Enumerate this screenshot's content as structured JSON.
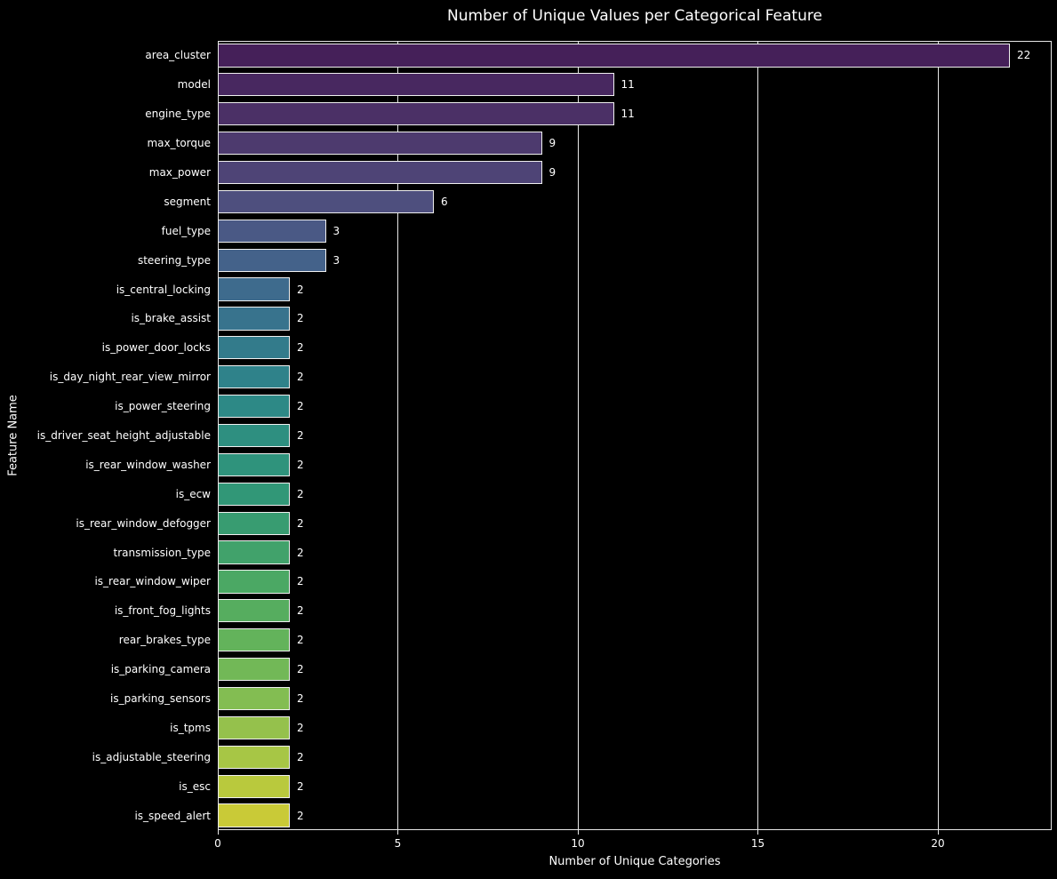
{
  "chart_data": {
    "type": "bar",
    "orientation": "horizontal",
    "title": "Number of Unique Values per Categorical Feature",
    "xlabel": "Number of Unique Categories",
    "ylabel": "Feature Name",
    "categories": [
      "area_cluster",
      "model",
      "engine_type",
      "max_torque",
      "max_power",
      "segment",
      "fuel_type",
      "steering_type",
      "is_central_locking",
      "is_brake_assist",
      "is_power_door_locks",
      "is_day_night_rear_view_mirror",
      "is_power_steering",
      "is_driver_seat_height_adjustable",
      "is_rear_window_washer",
      "is_ecw",
      "is_rear_window_defogger",
      "transmission_type",
      "is_rear_window_wiper",
      "is_front_fog_lights",
      "rear_brakes_type",
      "is_parking_camera",
      "is_parking_sensors",
      "is_tpms",
      "is_adjustable_steering",
      "is_esc",
      "is_speed_alert"
    ],
    "values": [
      22,
      11,
      11,
      9,
      9,
      6,
      3,
      3,
      2,
      2,
      2,
      2,
      2,
      2,
      2,
      2,
      2,
      2,
      2,
      2,
      2,
      2,
      2,
      2,
      2,
      2,
      2
    ],
    "bar_colors": [
      "#452059",
      "#482860",
      "#4b3066",
      "#4d3a6e",
      "#4e4476",
      "#4e4f7e",
      "#4a5985",
      "#44628a",
      "#3e6b8d",
      "#38738d",
      "#337b8b",
      "#2f828a",
      "#2d8986",
      "#2e8f80",
      "#2f937c",
      "#319777",
      "#389c71",
      "#41a26b",
      "#4ba864",
      "#56ad5f",
      "#63b35b",
      "#72b857",
      "#83bd52",
      "#95c14c",
      "#a7c645",
      "#b9c93d",
      "#c9ca37"
    ],
    "xticks": [
      0,
      5,
      10,
      15,
      20
    ],
    "xlim": [
      0,
      23.16
    ],
    "grid": "vertical-only",
    "legend": "none",
    "background_color": "#000000",
    "text_color": "#ffffff",
    "grid_color": "#e8e8e8",
    "bar_edge_color": "#f0f0f0"
  }
}
